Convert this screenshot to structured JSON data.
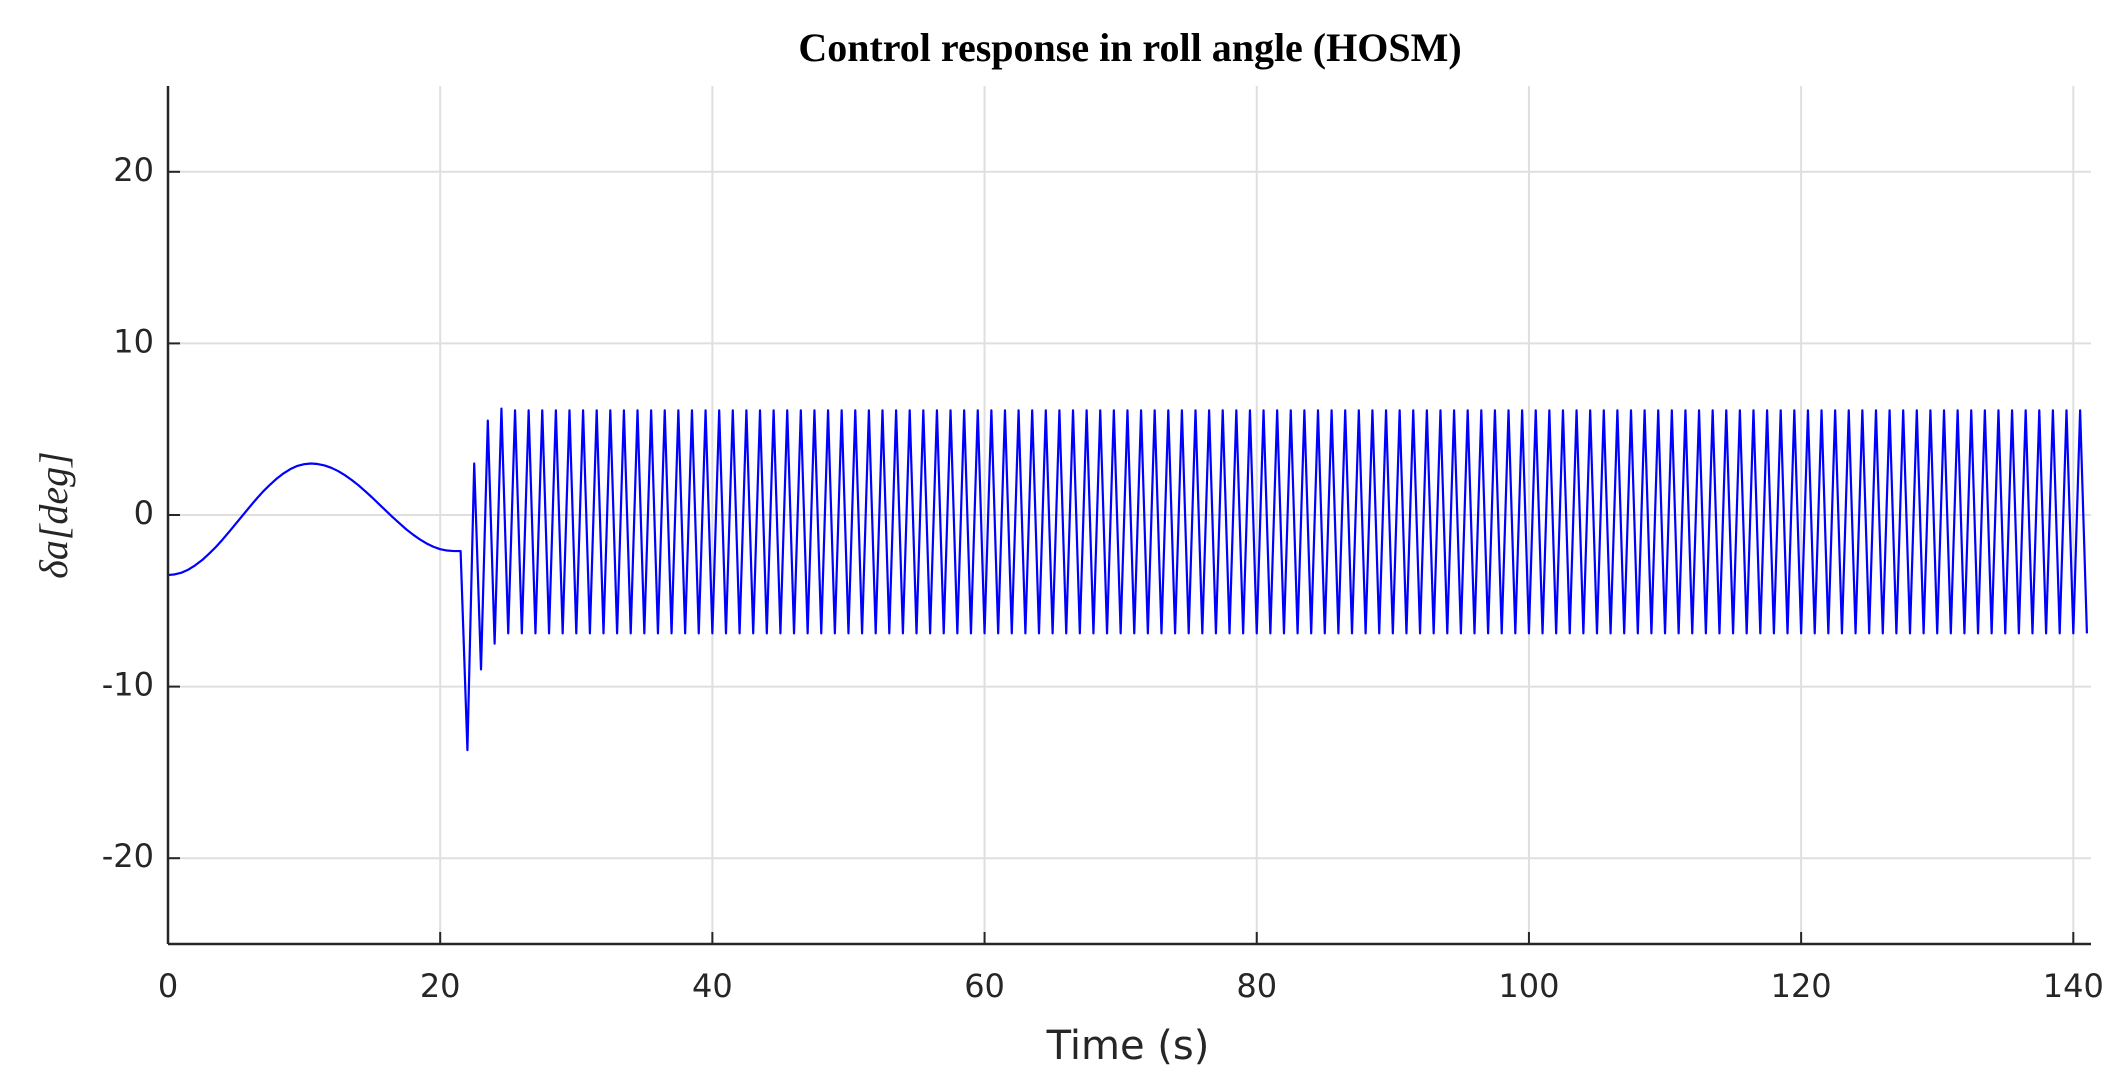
{
  "chart_data": {
    "type": "line",
    "title": "Control response in roll angle (HOSM)",
    "xlabel": "Time (s)",
    "ylabel": "δa[deg]",
    "xlim": [
      0,
      141.3
    ],
    "ylim": [
      -25,
      25
    ],
    "xticks": [
      0,
      20,
      40,
      60,
      80,
      100,
      120,
      140
    ],
    "yticks": [
      -20,
      -10,
      0,
      10,
      20
    ],
    "grid": true,
    "x": [
      0,
      0.5,
      1,
      1.5,
      2,
      2.5,
      3,
      3.5,
      4,
      4.5,
      5,
      5.5,
      6,
      6.5,
      7,
      7.5,
      8,
      8.5,
      9,
      9.5,
      10,
      10.5,
      11,
      11.5,
      12,
      12.5,
      13,
      13.5,
      14,
      14.5,
      15,
      15.5,
      16,
      16.5,
      17,
      17.5,
      18,
      18.5,
      19,
      19.5,
      20,
      20.5,
      21,
      21.5,
      22,
      22.5,
      23,
      23.5,
      24,
      24.5,
      25,
      25.5,
      26,
      26.5,
      27,
      27.5,
      28,
      28.5,
      29,
      29.5,
      30,
      30.5,
      31,
      31.5,
      32,
      32.5,
      33,
      33.5,
      34,
      34.5,
      35,
      35.5,
      36,
      36.5,
      37,
      37.5,
      38,
      38.5,
      39,
      39.5,
      40,
      40.5,
      41,
      41.5,
      42,
      42.5,
      43,
      43.5,
      44,
      44.5,
      45,
      45.5,
      46,
      46.5,
      47,
      47.5,
      48,
      48.5,
      49,
      49.5,
      50,
      50.5,
      51,
      51.5,
      52,
      52.5,
      53,
      53.5,
      54,
      54.5,
      55,
      55.5,
      56,
      56.5,
      57,
      57.5,
      58,
      58.5,
      59,
      59.5,
      60,
      60.5,
      61,
      61.5,
      62,
      62.5,
      63,
      63.5,
      64,
      64.5,
      65,
      65.5,
      66,
      66.5,
      67,
      67.5,
      68,
      68.5,
      69,
      69.5,
      70,
      70.5,
      71,
      71.5,
      72,
      72.5,
      73,
      73.5,
      74,
      74.5,
      75,
      75.5,
      76,
      76.5,
      77,
      77.5,
      78,
      78.5,
      79,
      79.5,
      80,
      80.5,
      81,
      81.5,
      82,
      82.5,
      83,
      83.5,
      84,
      84.5,
      85,
      85.5,
      86,
      86.5,
      87,
      87.5,
      88,
      88.5,
      89,
      89.5,
      90,
      90.5,
      91,
      91.5,
      92,
      92.5,
      93,
      93.5,
      94,
      94.5,
      95,
      95.5,
      96,
      96.5,
      97,
      97.5,
      98,
      98.5,
      99,
      99.5,
      100,
      100.5,
      101,
      101.5,
      102,
      102.5,
      103,
      103.5,
      104,
      104.5,
      105,
      105.5,
      106,
      106.5,
      107,
      107.5,
      108,
      108.5,
      109,
      109.5,
      110,
      110.5,
      111,
      111.5,
      112,
      112.5,
      113,
      113.5,
      114,
      114.5,
      115,
      115.5,
      116,
      116.5,
      117,
      117.5,
      118,
      118.5,
      119,
      119.5,
      120,
      120.5,
      121,
      121.5,
      122,
      122.5,
      123,
      123.5,
      124,
      124.5,
      125,
      125.5,
      126,
      126.5,
      127,
      127.5,
      128,
      128.5,
      129,
      129.5,
      130,
      130.5,
      131,
      131.5,
      132,
      132.5,
      133,
      133.5,
      134,
      134.5,
      135,
      135.5,
      136,
      136.5,
      137,
      137.5,
      138,
      138.5,
      139,
      139.5,
      140,
      140.5,
      141
    ],
    "series": [
      {
        "color": "#0000ff",
        "values": [
          -3.5,
          -3.46,
          -3.36,
          -3.18,
          -2.93,
          -2.63,
          -2.27,
          -1.88,
          -1.44,
          -0.97,
          -0.49,
          -0.01,
          0.47,
          0.94,
          1.38,
          1.77,
          2.13,
          2.43,
          2.68,
          2.86,
          2.96,
          3.0,
          2.97,
          2.89,
          2.75,
          2.56,
          2.32,
          2.04,
          1.73,
          1.38,
          1.02,
          0.64,
          0.26,
          -0.12,
          -0.48,
          -0.83,
          -1.14,
          -1.42,
          -1.66,
          -1.85,
          -1.99,
          -2.07,
          -2.1,
          -2.1,
          -13.7,
          3.0,
          -9.0,
          5.5,
          -7.5,
          6.2,
          -6.9,
          6.1,
          -6.9,
          6.1,
          -6.9,
          6.1,
          -6.9,
          6.1,
          -6.9,
          6.1,
          -6.9,
          6.1,
          -6.9,
          6.1,
          -6.9,
          6.1,
          -6.9,
          6.1,
          -6.9,
          6.1,
          -6.9,
          6.1,
          -6.9,
          6.1,
          -6.9,
          6.1,
          -6.9,
          6.1,
          -6.9,
          6.1,
          -6.9,
          6.1,
          -6.9,
          6.1,
          -6.9,
          6.1,
          -6.9,
          6.1,
          -6.9,
          6.1,
          -6.9,
          6.1,
          -6.9,
          6.1,
          -6.9,
          6.1,
          -6.9,
          6.1,
          -6.9,
          6.1,
          -6.9,
          6.1,
          -6.9,
          6.1,
          -6.9,
          6.1,
          -6.9,
          6.1,
          -6.9,
          6.1,
          -6.9,
          6.1,
          -6.9,
          6.1,
          -6.9,
          6.1,
          -6.9,
          6.1,
          -6.9,
          6.1,
          -6.9,
          6.1,
          -6.9,
          6.1,
          -6.9,
          6.1,
          -6.9,
          6.1,
          -6.9,
          6.1,
          -6.9,
          6.1,
          -6.9,
          6.1,
          -6.9,
          6.1,
          -6.9,
          6.1,
          -6.9,
          6.1,
          -6.9,
          6.1,
          -6.9,
          6.1,
          -6.9,
          6.1,
          -6.9,
          6.1,
          -6.9,
          6.1,
          -6.9,
          6.1,
          -6.9,
          6.1,
          -6.9,
          6.1,
          -6.9,
          6.1,
          -6.9,
          6.1,
          -6.9,
          6.1,
          -6.9,
          6.1,
          -6.9,
          6.1,
          -6.9,
          6.1,
          -6.9,
          6.1,
          -6.9,
          6.1,
          -6.9,
          6.1,
          -6.9,
          6.1,
          -6.9,
          6.1,
          -6.9,
          6.1,
          -6.9,
          6.1,
          -6.9,
          6.1,
          -6.9,
          6.1,
          -6.9,
          6.1,
          -6.9,
          6.1,
          -6.9,
          6.1,
          -6.9,
          6.1,
          -6.9,
          6.1,
          -6.9,
          6.1,
          -6.9,
          6.1,
          -6.9,
          6.1,
          -6.9,
          6.1,
          -6.9,
          6.1,
          -6.9,
          6.1,
          -6.9,
          6.1,
          -6.9,
          6.1,
          -6.9,
          6.1,
          -6.9,
          6.1,
          -6.9,
          6.1,
          -6.9,
          6.1,
          -6.9,
          6.1,
          -6.9,
          6.1,
          -6.9,
          6.1,
          -6.9,
          6.1,
          -6.9,
          6.1,
          -6.9,
          6.1,
          -6.9,
          6.1,
          -6.9,
          6.1,
          -6.9,
          6.1,
          -6.9,
          6.1,
          -6.9,
          6.1,
          -6.9,
          6.1,
          -6.9,
          6.1,
          -6.9,
          6.1,
          -6.9,
          6.1,
          -6.9,
          6.1,
          -6.9,
          6.1,
          -6.9,
          6.1,
          -6.9,
          6.1,
          -6.9,
          6.1,
          -6.9,
          6.1,
          -6.9,
          6.1,
          -6.9,
          6.1,
          -6.9,
          6.1,
          -6.9,
          6.1,
          -6.9,
          6.1,
          -6.9,
          6.1,
          -6.9,
          6.1,
          -6.9,
          6.1,
          -6.9,
          6.1,
          -6.9,
          6.1,
          -6.9
        ]
      }
    ]
  }
}
